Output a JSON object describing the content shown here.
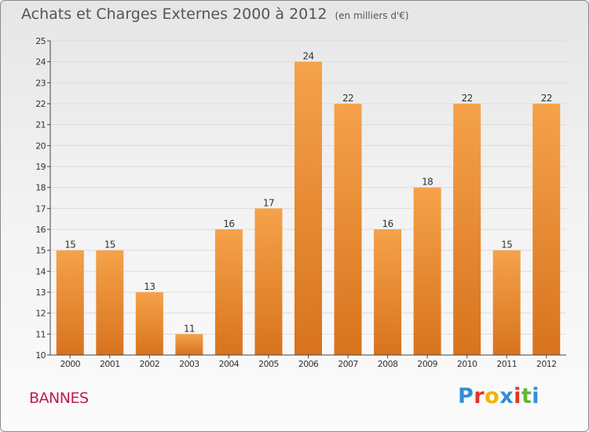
{
  "header": {
    "title": "Achats et Charges Externes 2000 à 2012",
    "unit": "(en milliers d'€)"
  },
  "footer": {
    "commune": "BANNES",
    "brand_letters": [
      {
        "ch": "P",
        "color": "#2f8fd8"
      },
      {
        "ch": "r",
        "color": "#e0342b"
      },
      {
        "ch": "o",
        "color": "#f2b300"
      },
      {
        "ch": "x",
        "color": "#2f8fd8"
      },
      {
        "ch": "i",
        "color": "#e0342b"
      },
      {
        "ch": "t",
        "color": "#5fb832"
      },
      {
        "ch": "i",
        "color": "#2f8fd8"
      }
    ]
  },
  "colors": {
    "bar_light": "#f5a24a",
    "bar_dark": "#d8731e",
    "grid": "#dcdcdc",
    "axis_text": "#333333"
  },
  "chart_data": {
    "type": "bar",
    "title": "Achats et Charges Externes 2000 à 2012",
    "subtitle": "(en milliers d'€)",
    "categories": [
      "2000",
      "2001",
      "2002",
      "2003",
      "2004",
      "2005",
      "2006",
      "2007",
      "2008",
      "2009",
      "2010",
      "2011",
      "2012"
    ],
    "values": [
      15,
      15,
      13,
      11,
      16,
      17,
      24,
      22,
      16,
      18,
      22,
      15,
      22
    ],
    "ylim": [
      10,
      25
    ],
    "yticks": [
      10,
      11,
      12,
      13,
      14,
      15,
      16,
      17,
      18,
      19,
      20,
      21,
      22,
      23,
      24,
      25
    ],
    "grid": true,
    "data_labels": true
  }
}
